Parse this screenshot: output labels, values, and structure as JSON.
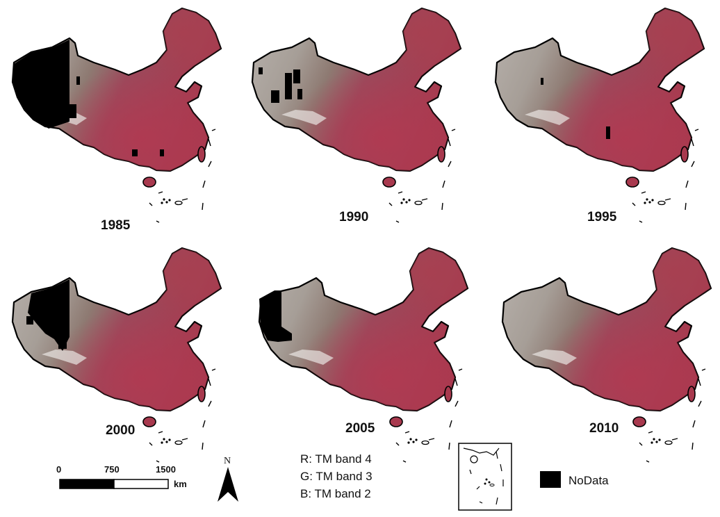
{
  "panels": [
    {
      "year": "1985",
      "nodata_level": "large"
    },
    {
      "year": "1990",
      "nodata_level": "small"
    },
    {
      "year": "1995",
      "nodata_level": "minimal"
    },
    {
      "year": "2000",
      "nodata_level": "large"
    },
    {
      "year": "2005",
      "nodata_level": "medium"
    },
    {
      "year": "2010",
      "nodata_level": "none"
    }
  ],
  "scale_bar": {
    "ticks": [
      "0",
      "750",
      "1500"
    ],
    "unit": "km"
  },
  "north_arrow": {
    "label": "N"
  },
  "band_legend": {
    "lines": [
      "R: TM band 4",
      "G: TM band 3",
      "B: TM band 2"
    ]
  },
  "nodata_legend": {
    "label": "NoData",
    "color": "#000000"
  },
  "colors": {
    "vegetation": "#a8394e",
    "arid": "#b9b3ad",
    "plateau": "#8c7d73",
    "nodata": "#000000"
  }
}
